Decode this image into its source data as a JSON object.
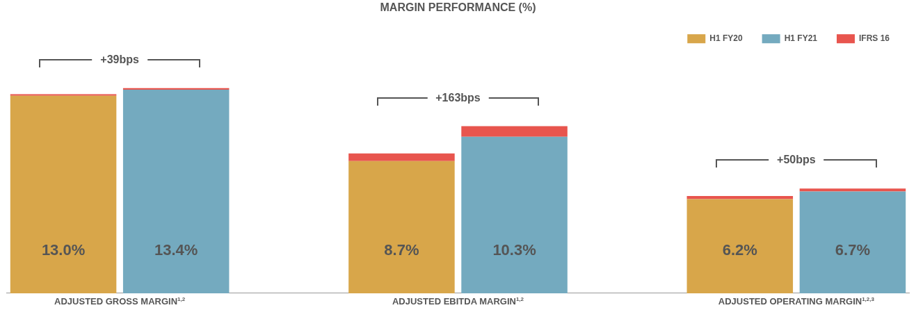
{
  "chart_data": {
    "type": "bar",
    "title": "MARGIN PERFORMANCE (%)",
    "categories": [
      "ADJUSTED GROSS MARGIN$^{1,2}$",
      null,
      null,
      "ADJUSTED EBITDA MARGIN$^{1,2}$",
      null,
      null,
      "ADJUSTED OPERATING MARGIN$^{1,2,3}$",
      null
    ],
    "stacked": true,
    "legend": "top right",
    "series": [
      {
        "name": "H1 FY20",
        "color": "#d8a64a",
        "values": [
          13.0,
          null,
          null,
          8.7,
          null,
          null,
          6.2,
          null
        ],
        "value_labels": [
          "13.0%",
          null,
          null,
          "8.7%",
          null,
          null,
          "6.2%",
          null
        ]
      },
      {
        "name": "H1 FY21",
        "color": "#74aabf",
        "values": [
          null,
          13.4,
          null,
          null,
          10.3,
          null,
          null,
          6.7
        ],
        "value_labels": [
          null,
          "13.4%",
          null,
          null,
          "10.3%",
          null,
          null,
          "6.7%"
        ]
      },
      {
        "name": "IFRS 16",
        "color": "#e8554e",
        "values": [
          0.1,
          0.1,
          null,
          0.5,
          0.7,
          null,
          0.2,
          0.2
        ]
      }
    ],
    "annotations": [
      "+39bps",
      "+163bps",
      "+50bps"
    ]
  }
}
